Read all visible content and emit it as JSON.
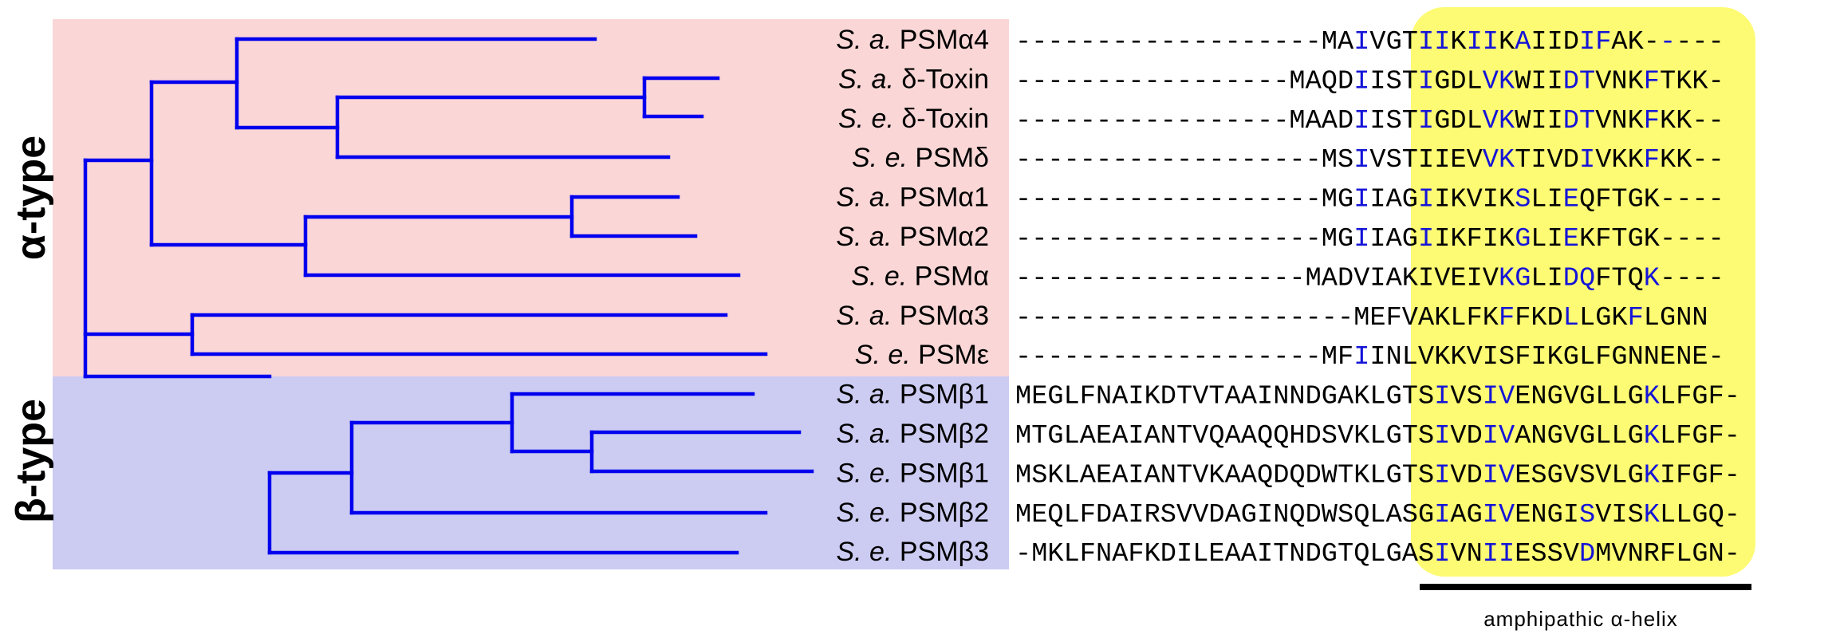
{
  "groups": [
    {
      "label": "α-type",
      "color": "#fad6d6"
    },
    {
      "label": "β-type",
      "color": "#cccbf2"
    }
  ],
  "helix_highlight_color": "#fdfb73",
  "branch_color": "#0000ee",
  "conserved_residue_color": "#1414d8",
  "helix_label": "amphipathic α-helix",
  "taxa": [
    {
      "species": "S. a.",
      "protein": "PSMα4",
      "sequence": "-------------------MAIVGTIIKIIKAIIDIFAK-----",
      "blue": [
        21,
        25,
        26,
        28,
        29,
        31,
        35,
        36,
        40
      ]
    },
    {
      "species": "S. a.",
      "protein": "δ-Toxin",
      "sequence": "-----------------MAQDIISTIGDLVKWIIDTVNKFTKK-",
      "blue": [
        21,
        25,
        29,
        30,
        34,
        35,
        39
      ]
    },
    {
      "species": "S. e.",
      "protein": "δ-Toxin",
      "sequence": "-----------------MAADIISTIGDLVKWIIDTVNKFKK--",
      "blue": [
        21,
        25,
        29,
        30,
        34,
        35,
        39
      ]
    },
    {
      "species": "S. e.",
      "protein": "PSMδ",
      "sequence": "-------------------MSIVSTIIEVVKTIVDIVKKFKK--",
      "blue": [
        21,
        29,
        30,
        35,
        39
      ]
    },
    {
      "species": "S. a.",
      "protein": "PSMα1",
      "sequence": "-------------------MGIIAGIIKVIKSLIEQFTGK----",
      "blue": [
        21,
        25,
        31,
        34
      ]
    },
    {
      "species": "S. a.",
      "protein": "PSMα2",
      "sequence": "-------------------MGIIAGIIKFIKGLIEKFTGK----",
      "blue": [
        21,
        25,
        31,
        34
      ]
    },
    {
      "species": "S. e.",
      "protein": "PSMα",
      "sequence": "------------------MADVIAKIVEIVKGLIDQFTQK----",
      "blue": [
        30,
        31,
        34,
        35,
        39
      ]
    },
    {
      "species": "S. a.",
      "protein": "PSMα3",
      "sequence": "---------------------MEFVAKLFKFFKDLLGKFLGNN",
      "blue": [
        30,
        34,
        38
      ]
    },
    {
      "species": "S. e.",
      "protein": "PSMε",
      "sequence": "-------------------MFIINLVKKVISFIKGLFGNNENE-",
      "blue": [
        21
      ]
    },
    {
      "species": "S. a.",
      "protein": "PSMβ1",
      "sequence": "MEGLFNAIKDTVTAAINNDGAKLGTSIVSIVENGVGLLGKLFGF-",
      "blue": [
        26,
        29,
        30,
        39
      ]
    },
    {
      "species": "S. a.",
      "protein": "PSMβ2",
      "sequence": "MTGLAEAIANTVQAAQQHDSVKLGTSIVDIVANGVGLLGKLFGF-",
      "blue": [
        26,
        29,
        30,
        39
      ]
    },
    {
      "species": "S. e.",
      "protein": "PSMβ1",
      "sequence": "MSKLAEAIANTVKAAQDQDWTKLGTSIVDIVESGVSVLGKIFGF-",
      "blue": [
        26,
        29,
        30,
        39
      ]
    },
    {
      "species": "S. e.",
      "protein": "PSMβ2",
      "sequence": "MEQLFDAIRSVVDAGINQDWSQLASGIAGIVENGISVISKLLGQ-",
      "blue": [
        26,
        29,
        30,
        35,
        39
      ]
    },
    {
      "species": "S. e.",
      "protein": "PSMβ3",
      "sequence": "-MKLFNAFKDILEAAITNDGTQLGASIVNIIESSVDMVNRFLGN-",
      "blue": [
        26,
        29,
        30,
        35
      ]
    }
  ]
}
